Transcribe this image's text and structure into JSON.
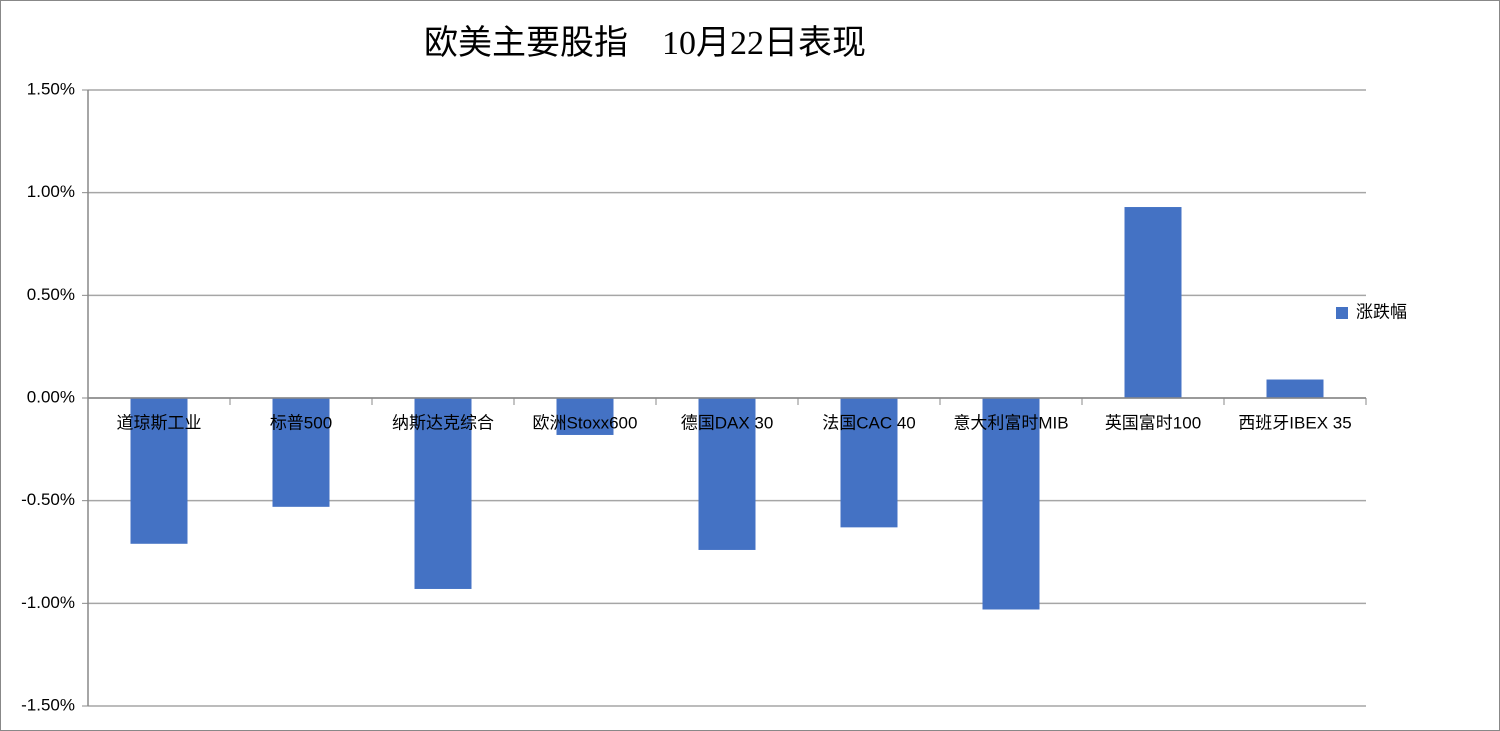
{
  "chart_data": {
    "type": "bar",
    "title": "欧美主要股指　10月22日表现",
    "categories": [
      "道琼斯工业",
      "标普500",
      "纳斯达克综合",
      "欧洲Stoxx600",
      "德国DAX 30",
      "法国CAC 40",
      "意大利富时MIB",
      "英国富时100",
      "西班牙IBEX 35"
    ],
    "series": [
      {
        "name": "涨跌幅",
        "color": "#4472c4",
        "values": [
          -0.71,
          -0.53,
          -0.93,
          -0.18,
          -0.74,
          -0.63,
          -1.03,
          0.93,
          0.09
        ]
      }
    ],
    "ylim": [
      -1.5,
      1.5
    ],
    "yticks": [
      {
        "value": -1.5,
        "label": "-1.50%"
      },
      {
        "value": -1.0,
        "label": "-1.00%"
      },
      {
        "value": -0.5,
        "label": "-0.50%"
      },
      {
        "value": 0,
        "label": "0.00%"
      },
      {
        "value": 0.5,
        "label": "0.50%"
      },
      {
        "value": 1.0,
        "label": "1.00%"
      },
      {
        "value": 1.5,
        "label": "1.50%"
      }
    ],
    "grid": true,
    "legend": "right"
  }
}
